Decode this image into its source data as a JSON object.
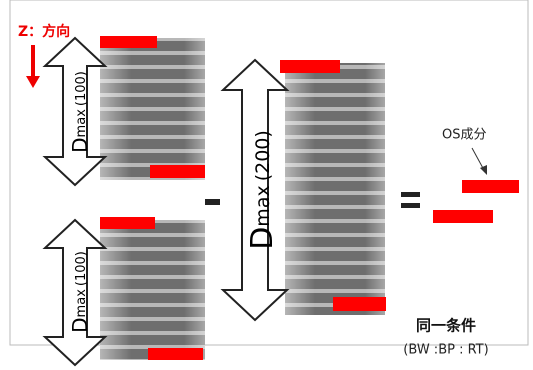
{
  "header": {
    "axis_label": "Z：方向"
  },
  "arrows": [
    {
      "d": "D",
      "sub": "max",
      "value": "(100)"
    },
    {
      "d": "D",
      "sub": "max",
      "value": "(100)"
    },
    {
      "d": "D",
      "sub": "max",
      "value": "(200)"
    }
  ],
  "result": {
    "label": "OS成分"
  },
  "condition": {
    "title": "同一条件",
    "detail": "(BW :BP : RT)"
  }
}
